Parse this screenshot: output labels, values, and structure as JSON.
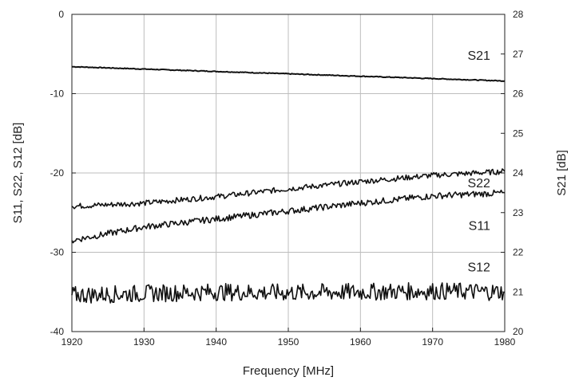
{
  "chart_data": {
    "type": "line",
    "x": [
      1920,
      1930,
      1940,
      1950,
      1960,
      1970,
      1980
    ],
    "xlabel": "Frequency [MHz]",
    "ylabel_left": "S11, S22, S12 [dB]",
    "ylabel_right": "S21 [dB]",
    "xlim": [
      1920,
      1980
    ],
    "ylim_left": [
      -40,
      0
    ],
    "ylim_right": [
      20,
      28
    ],
    "x_ticks": [
      "1920",
      "1930",
      "1940",
      "1950",
      "1960",
      "1970",
      "1980"
    ],
    "y_ticks_left": [
      "0",
      "-10",
      "-20",
      "-30",
      "-40"
    ],
    "y_ticks_right": [
      "28",
      "27",
      "26",
      "25",
      "24",
      "23",
      "22",
      "21",
      "20"
    ],
    "grid": true,
    "series": [
      {
        "name": "S21",
        "axis": "right",
        "noise": 0.01,
        "values": [
          26.68,
          26.62,
          26.56,
          26.5,
          26.44,
          26.38,
          26.32
        ],
        "label": "S21",
        "label_at": [
          1978,
          26.85
        ]
      },
      {
        "name": "S22",
        "axis": "left",
        "noise": 0.35,
        "values": [
          -24.2,
          -23.8,
          -23.0,
          -22.0,
          -21.1,
          -20.3,
          -19.8
        ],
        "label": "S22",
        "label_at": [
          1978,
          -21.8
        ]
      },
      {
        "name": "S11",
        "axis": "left",
        "noise": 0.4,
        "values": [
          -28.5,
          -26.8,
          -25.8,
          -24.8,
          -23.8,
          -22.9,
          -22.5
        ],
        "label": "S11",
        "label_at": [
          1978,
          -27.2
        ]
      },
      {
        "name": "S12",
        "axis": "left",
        "noise": 1.1,
        "values": [
          -35.4,
          -35.2,
          -35.0,
          -35.1,
          -35.0,
          -34.9,
          -35.0
        ],
        "label": "S12",
        "label_at": [
          1978,
          -32.4
        ]
      }
    ],
    "line_color": "#111111",
    "grid_color": "#bdbdbd"
  }
}
